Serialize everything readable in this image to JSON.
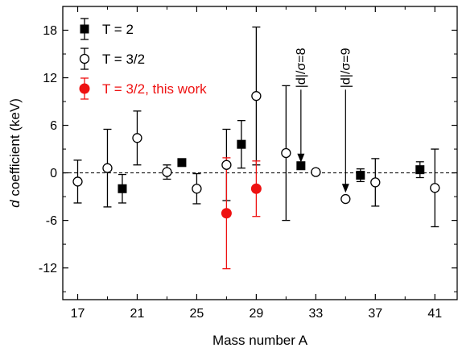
{
  "chart_data": {
    "type": "scatter",
    "title": "",
    "xlabel": "Mass number A",
    "ylabel_italic": "d",
    "ylabel_rest": " coefficient  (keV)",
    "xlim": [
      16,
      42.5
    ],
    "ylim": [
      -16,
      21
    ],
    "xticks": [
      17,
      21,
      25,
      29,
      33,
      37,
      41
    ],
    "xticks_minor": [
      19,
      23,
      27,
      31,
      35,
      39
    ],
    "yticks": [
      -12,
      -6,
      0,
      6,
      12,
      18
    ],
    "yticks_minor": [
      -15,
      -9,
      -3,
      3,
      9,
      15
    ],
    "grid": false,
    "reference_line": {
      "y": 0,
      "style": "dashed"
    },
    "legend_position": "top-left",
    "series": [
      {
        "name": "T = 2",
        "marker": "filled-square",
        "color": "#000000",
        "points": [
          {
            "x": 20,
            "y": -2.0,
            "err": 1.8
          },
          {
            "x": 24,
            "y": 1.3,
            "err": 0.4
          },
          {
            "x": 28,
            "y": 3.6,
            "err": 3.0
          },
          {
            "x": 32,
            "y": 0.9,
            "err": 0.4
          },
          {
            "x": 36,
            "y": -0.3,
            "err": 0.8
          },
          {
            "x": 40,
            "y": 0.4,
            "err": 1.0
          }
        ]
      },
      {
        "name": "T = 3/2",
        "marker": "open-circle",
        "color": "#000000",
        "points": [
          {
            "x": 17,
            "y": -1.1,
            "err": 2.7
          },
          {
            "x": 19,
            "y": 0.6,
            "err": 4.9
          },
          {
            "x": 21,
            "y": 4.4,
            "err": 3.4
          },
          {
            "x": 23,
            "y": 0.1,
            "err": 0.9
          },
          {
            "x": 25,
            "y": -2.0,
            "err": 1.9
          },
          {
            "x": 27,
            "y": 1.0,
            "err": 4.5
          },
          {
            "x": 29,
            "y": 9.7,
            "err": 8.7
          },
          {
            "x": 31,
            "y": 2.5,
            "err": 8.5
          },
          {
            "x": 33,
            "y": 0.1,
            "err": 0
          },
          {
            "x": 35,
            "y": -3.3,
            "err": 0
          },
          {
            "x": 37,
            "y": -1.2,
            "err": 3.0
          },
          {
            "x": 41,
            "y": -1.9,
            "err": 4.9
          }
        ]
      },
      {
        "name": "T = 3/2, this work",
        "marker": "filled-circle",
        "color": "#ee1111",
        "points": [
          {
            "x": 27,
            "y": -5.1,
            "err": 7.0
          },
          {
            "x": 29,
            "y": -2.0,
            "err": 3.5
          }
        ]
      }
    ],
    "annotations": [
      {
        "text": "|d|/σ=8",
        "x": 32,
        "y_from": 10.5,
        "y_to": 1.3
      },
      {
        "text": "|d|/σ=9",
        "x": 35,
        "y_from": 10.5,
        "y_to": -2.5
      }
    ]
  }
}
